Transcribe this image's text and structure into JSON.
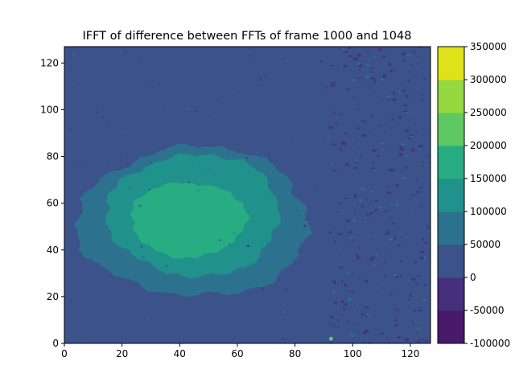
{
  "chart_data": {
    "type": "contourf",
    "title": "IFFT of difference between FFTs of frame 1000 and 1048",
    "xlabel": "",
    "ylabel": "",
    "xlim": [
      0,
      127
    ],
    "ylim": [
      0,
      127
    ],
    "x_ticks": [
      0,
      20,
      40,
      60,
      80,
      100,
      120
    ],
    "y_ticks": [
      0,
      20,
      40,
      60,
      80,
      100,
      120
    ],
    "colorbar": {
      "levels": [
        -100000,
        -50000,
        0,
        50000,
        100000,
        150000,
        200000,
        250000,
        300000,
        350000
      ],
      "colors": [
        "#481a6c",
        "#472f7d",
        "#3b528b",
        "#2c728e",
        "#21918c",
        "#27ad81",
        "#5ec962",
        "#95d840",
        "#dde318"
      ]
    },
    "regions": [
      {
        "label": "background",
        "level_range": [
          0,
          50000
        ],
        "center": [
          63.5,
          63.5
        ]
      },
      {
        "label": "outer ring",
        "level_range": [
          50000,
          100000
        ],
        "center": [
          45,
          52
        ],
        "semi_axes": [
          40,
          32
        ]
      },
      {
        "label": "inner ring",
        "level_range": [
          100000,
          150000
        ],
        "center": [
          45,
          55
        ],
        "semi_axes": [
          30,
          26
        ]
      },
      {
        "label": "core",
        "level_range": [
          150000,
          200000
        ],
        "center": [
          43,
          53
        ],
        "semi_axes": [
          20,
          16
        ]
      }
    ],
    "hot_spots": [
      {
        "x": 92.5,
        "y": 2,
        "level_range": [
          200000,
          250000
        ]
      }
    ]
  }
}
